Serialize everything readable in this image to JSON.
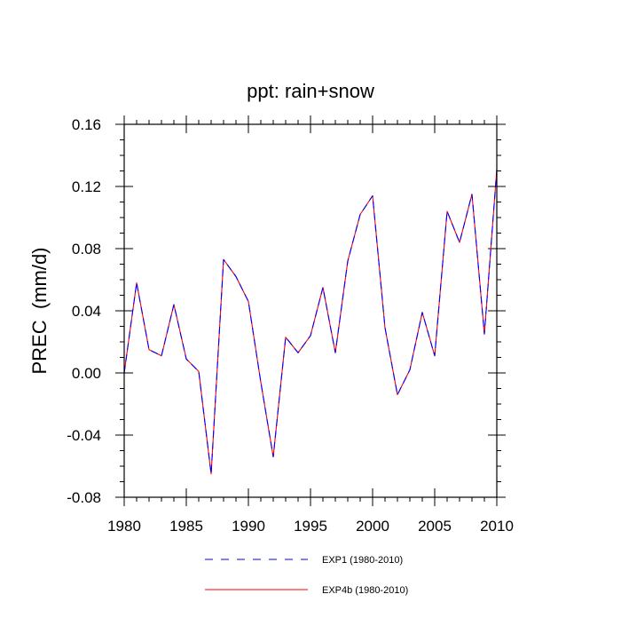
{
  "chart_data": {
    "type": "line",
    "title": "ppt: rain+snow",
    "xlabel": "",
    "ylabel": "PREC  (mm/d)",
    "xlim": [
      1980,
      2010
    ],
    "ylim": [
      -0.08,
      0.16
    ],
    "x_ticks": [
      1980,
      1985,
      1990,
      1995,
      2000,
      2005,
      2010
    ],
    "x_tick_labels": [
      "1980",
      "1985",
      "1990",
      "1995",
      "2000",
      "2005",
      "2010"
    ],
    "y_ticks": [
      -0.08,
      -0.04,
      0.0,
      0.04,
      0.08,
      0.12,
      0.16
    ],
    "y_tick_labels": [
      "-0.08",
      "-0.04",
      "0.00",
      "0.04",
      "0.08",
      "0.12",
      "0.16"
    ],
    "grid": false,
    "legend_position": "bottom",
    "x": [
      1980,
      1981,
      1982,
      1983,
      1984,
      1985,
      1986,
      1987,
      1988,
      1989,
      1990,
      1991,
      1992,
      1993,
      1994,
      1995,
      1996,
      1997,
      1998,
      1999,
      2000,
      2001,
      2002,
      2003,
      2004,
      2005,
      2006,
      2007,
      2008,
      2009,
      2010
    ],
    "series": [
      {
        "name": "EXP1 (1980-2010)",
        "color": "#0000ff",
        "style": "dashed",
        "values": [
          0.0,
          0.058,
          0.015,
          0.011,
          0.044,
          0.009,
          0.001,
          -0.065,
          0.073,
          0.062,
          0.046,
          -0.006,
          -0.054,
          0.023,
          0.013,
          0.024,
          0.055,
          0.013,
          0.072,
          0.102,
          0.114,
          0.029,
          -0.014,
          0.002,
          0.039,
          0.011,
          0.104,
          0.084,
          0.115,
          0.025,
          0.131
        ]
      },
      {
        "name": "EXP4b (1980-2010)",
        "color": "#ff0000",
        "style": "solid",
        "values": [
          0.0,
          0.058,
          0.015,
          0.011,
          0.044,
          0.009,
          0.001,
          -0.065,
          0.073,
          0.062,
          0.046,
          -0.006,
          -0.054,
          0.023,
          0.013,
          0.024,
          0.055,
          0.013,
          0.072,
          0.102,
          0.114,
          0.029,
          -0.014,
          0.002,
          0.039,
          0.011,
          0.104,
          0.084,
          0.115,
          0.025,
          0.131
        ]
      }
    ]
  }
}
